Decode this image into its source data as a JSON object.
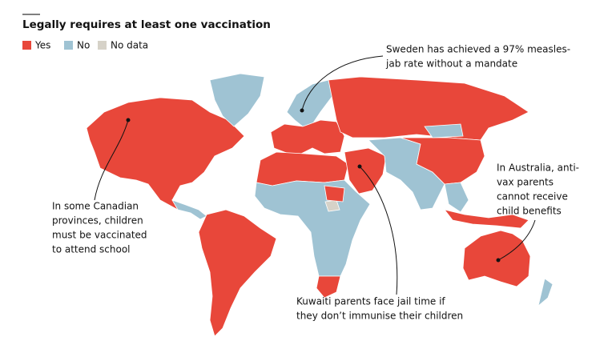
{
  "title": "Legally requires at least one vaccination",
  "legend": [
    {
      "label": "Yes",
      "color": "#e8473a"
    },
    {
      "label": "No",
      "color": "#9fc3d3"
    },
    {
      "label": "No data",
      "color": "#d6d2c8"
    }
  ],
  "annotations": [
    {
      "lines": [
        "Sweden has achieved a 97% measles-",
        "jab rate without a mandate"
      ]
    },
    {
      "lines": [
        "In some Canadian",
        "provinces, children",
        "must be vaccinated",
        "to attend school"
      ]
    },
    {
      "lines": [
        "In Australia, anti-",
        "vax parents",
        "cannot receive",
        "child benefits"
      ]
    },
    {
      "lines": [
        "Kuwaiti parents face jail time if",
        "they don’t immunise their children"
      ]
    }
  ]
}
